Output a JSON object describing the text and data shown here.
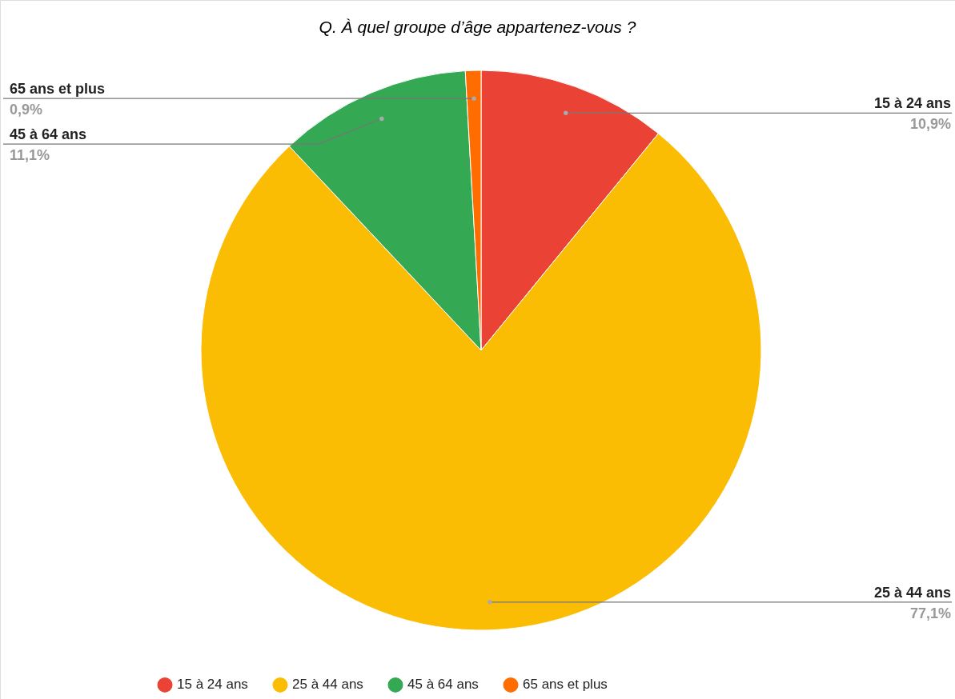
{
  "chart_data": {
    "type": "pie",
    "title": "Q. À quel groupe d’âge appartenez-vous ?",
    "categories": [
      "15 à 24 ans",
      "25 à 44 ans",
      "45 à 64 ans",
      "65 ans et plus"
    ],
    "values": [
      10.9,
      77.1,
      11.1,
      0.9
    ],
    "colors": [
      "#ea4335",
      "#fbbc04",
      "#34a853",
      "#ff6d01"
    ],
    "value_labels": [
      "10,9%",
      "77,1%",
      "11,1%",
      "0,9%"
    ],
    "legend": "bottom"
  }
}
